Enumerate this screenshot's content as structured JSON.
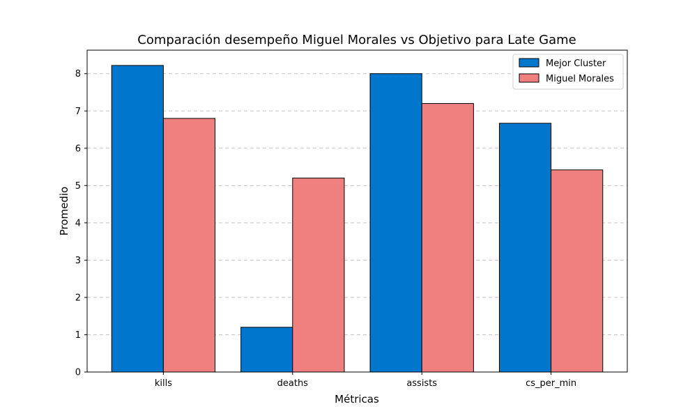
{
  "chart_data": {
    "type": "bar",
    "title": "Comparación desempeño Miguel Morales vs Objetivo para Late Game",
    "xlabel": "Métricas",
    "ylabel": "Promedio",
    "categories": [
      "kills",
      "deaths",
      "assists",
      "cs_per_min"
    ],
    "series": [
      {
        "name": "Mejor Cluster",
        "color": "#0077CC",
        "values": [
          8.22,
          1.2,
          8.0,
          6.67
        ]
      },
      {
        "name": "Miguel Morales",
        "color": "#F08080",
        "values": [
          6.8,
          5.2,
          7.2,
          5.42
        ]
      }
    ],
    "ylim": [
      0,
      8.63
    ],
    "yticks": [
      0,
      1,
      2,
      3,
      4,
      5,
      6,
      7,
      8
    ],
    "grid": true,
    "legend": "top-right"
  }
}
